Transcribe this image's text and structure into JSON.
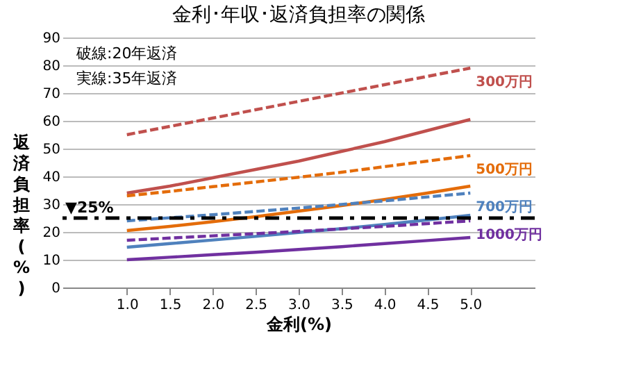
{
  "chart_data": {
    "type": "line",
    "title": "金利･年収･返済負担率の関係",
    "xlabel": "金利(%)",
    "ylabel": "返済負担率(%)",
    "x": [
      1.0,
      1.5,
      2.0,
      2.5,
      3.0,
      3.5,
      4.0,
      4.5,
      5.0
    ],
    "xlim": [
      0.25,
      5.75
    ],
    "xticks": [
      {
        "value": 1,
        "label": "1.0"
      },
      {
        "value": 1.5,
        "label": "1.5"
      },
      {
        "value": 2,
        "label": "2.0"
      },
      {
        "value": 2.5,
        "label": "2.5"
      },
      {
        "value": 3,
        "label": "3.0"
      },
      {
        "value": 3.5,
        "label": "3.5"
      },
      {
        "value": 4,
        "label": "4.0"
      },
      {
        "value": 4.5,
        "label": "4.5"
      },
      {
        "value": 5,
        "label": "5.0"
      }
    ],
    "ylim": [
      0,
      90
    ],
    "yticks": [
      0,
      10,
      20,
      30,
      40,
      50,
      60,
      70,
      80,
      90
    ],
    "grid": "y",
    "marker": "none",
    "series": [
      {
        "name": "300万円",
        "color": "#c0504d",
        "line_style": "dashed",
        "values": [
          55,
          58,
          61,
          64,
          67,
          70,
          73,
          76,
          79
        ]
      },
      {
        "color": "#c0504d",
        "line_style": "solid",
        "values": [
          34,
          36.5,
          39.5,
          42.5,
          45.5,
          49,
          52.5,
          56.5,
          60.5
        ]
      },
      {
        "name": "500万円",
        "color": "#e46c0a",
        "line_style": "dashed",
        "values": [
          33,
          34.6,
          36.3,
          38,
          39.7,
          41.5,
          43.5,
          45.5,
          47.5
        ]
      },
      {
        "color": "#e46c0a",
        "line_style": "solid",
        "values": [
          20.5,
          22,
          23.7,
          25.5,
          27.5,
          29.5,
          31.7,
          34,
          36.5
        ]
      },
      {
        "name": "700万円",
        "color": "#4f81bd",
        "line_style": "dashed",
        "values": [
          24,
          25.1,
          26.2,
          27.4,
          28.6,
          29.9,
          31.2,
          32.6,
          34
        ]
      },
      {
        "color": "#4f81bd",
        "line_style": "solid",
        "values": [
          14.5,
          15.8,
          17.1,
          18.4,
          19.8,
          21.2,
          22.7,
          24.3,
          26
        ]
      },
      {
        "name": "1000万円",
        "color": "#7030a0",
        "line_style": "dashed",
        "values": [
          17,
          17.8,
          18.6,
          19.4,
          20.2,
          21.1,
          22,
          23,
          24
        ]
      },
      {
        "color": "#7030a0",
        "line_style": "solid",
        "values": [
          10,
          10.9,
          11.8,
          12.7,
          13.7,
          14.7,
          15.8,
          16.9,
          18
        ]
      }
    ],
    "ref_lines": [
      {
        "axis": "y",
        "value": 25,
        "label": "▼25%",
        "color": "#000000",
        "line_style": "dashdot"
      }
    ],
    "annotations": [
      "破線:20年返済",
      "実線:35年返済"
    ]
  }
}
